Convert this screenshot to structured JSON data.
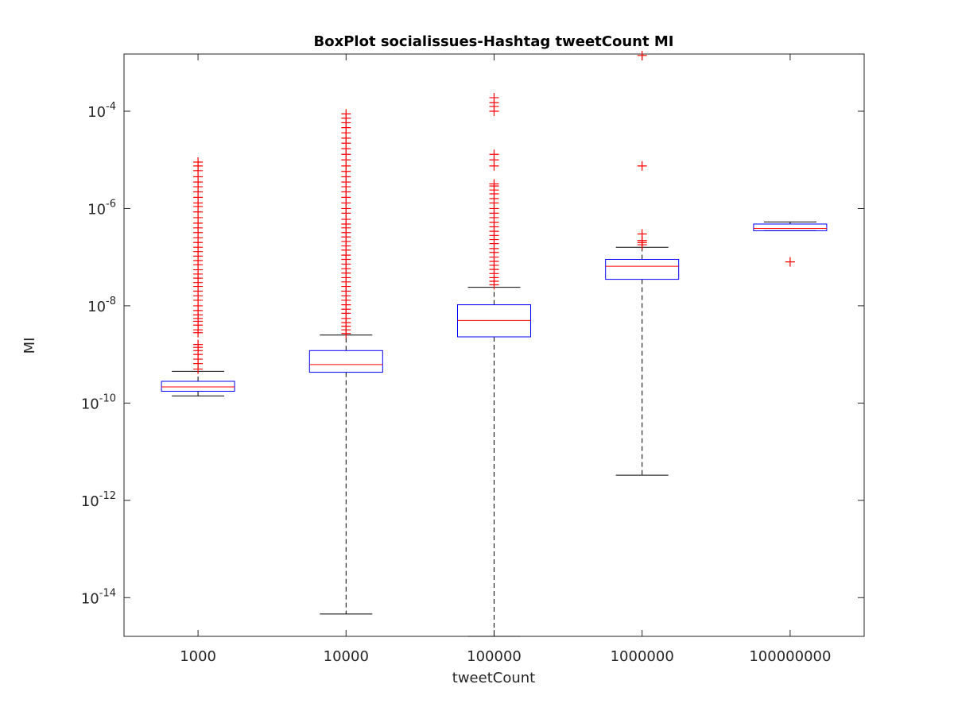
{
  "chart_data": {
    "type": "box",
    "title": "BoxPlot socialissues-Hashtag tweetCount MI",
    "xlabel": "tweetCount",
    "ylabel": "MI",
    "yscale": "log",
    "ylim": [
      1.6e-15,
      0.0015
    ],
    "grid": false,
    "legend": "none",
    "categories": [
      "1000",
      "10000",
      "100000",
      "1000000",
      "100000000"
    ],
    "ytick_values": [
      1e-14,
      1e-12,
      1e-10,
      1e-08,
      1e-06,
      0.0001
    ],
    "ytick_labels": [
      {
        "base": "10",
        "exp": "-14"
      },
      {
        "base": "10",
        "exp": "-12"
      },
      {
        "base": "10",
        "exp": "-10"
      },
      {
        "base": "10",
        "exp": "-8"
      },
      {
        "base": "10",
        "exp": "-6"
      },
      {
        "base": "10",
        "exp": "-4"
      }
    ],
    "boxes": [
      {
        "category": "1000",
        "whisker_low": 1.4e-10,
        "q1": 1.75e-10,
        "median": 2.15e-10,
        "q3": 2.8e-10,
        "whisker_high": 4.5e-10,
        "outliers": [
          5e-10,
          6.5e-10,
          8e-10,
          1e-09,
          1.2e-09,
          1.4e-09,
          1.6e-09,
          2.8e-09,
          3.2e-09,
          4e-09,
          4.8e-09,
          5.5e-09,
          6.5e-09,
          8e-09,
          1e-08,
          1.3e-08,
          1.6e-08,
          2e-08,
          2.5e-08,
          3e-08,
          3.7e-08,
          4.5e-08,
          5.5e-08,
          7e-08,
          8.5e-08,
          1.05e-07,
          1.3e-07,
          1.6e-07,
          2e-07,
          2.5e-07,
          3.2e-07,
          4e-07,
          5e-07,
          6.5e-07,
          8.5e-07,
          1.1e-06,
          1.3e-06,
          1.7e-06,
          2.2e-06,
          2.8e-06,
          3.5e-06,
          4.5e-06,
          6e-06,
          7.5e-06,
          9e-06
        ]
      },
      {
        "category": "10000",
        "whisker_low": 4.6e-15,
        "q1": 4.3e-10,
        "median": 6.2e-10,
        "q3": 1.2e-09,
        "whisker_high": 2.5e-09,
        "outliers": [
          2.7e-09,
          3.2e-09,
          3.8e-09,
          4.5e-09,
          5.5e-09,
          7e-09,
          8.5e-09,
          1.05e-08,
          1.3e-08,
          1.6e-08,
          2e-08,
          2.5e-08,
          3.1e-08,
          3.8e-08,
          4.7e-08,
          5.8e-08,
          7.2e-08,
          9e-08,
          1.1e-07,
          1.4e-07,
          1.7e-07,
          2.1e-07,
          2.6e-07,
          3.2e-07,
          4e-07,
          4.8e-07,
          6e-07,
          8e-07,
          1e-06,
          1.3e-06,
          1.7e-06,
          2.2e-06,
          2.8e-06,
          3.5e-06,
          4.5e-06,
          5.8e-06,
          7.5e-06,
          1e-05,
          1.3e-05,
          1.7e-05,
          2.2e-05,
          2.8e-05,
          3.6e-05,
          4.6e-05,
          5.8e-05,
          7.2e-05,
          8.8e-05
        ]
      },
      {
        "category": "100000",
        "whisker_low": 1.6e-15,
        "q1": 2.3e-09,
        "median": 5e-09,
        "q3": 1.05e-08,
        "whisker_high": 2.4e-08,
        "outliers": [
          2.7e-08,
          3.2e-08,
          3.8e-08,
          4.6e-08,
          5.6e-08,
          6.8e-08,
          8.2e-08,
          1e-07,
          1.25e-07,
          1.5e-07,
          1.9e-07,
          2.3e-07,
          2.8e-07,
          3.4e-07,
          4.2e-07,
          5.2e-07,
          6.5e-07,
          8e-07,
          1e-06,
          1.3e-06,
          1.6e-06,
          2e-06,
          2.4e-06,
          2.9e-06,
          3.2e-06,
          7.5e-06,
          1e-05,
          1.3e-05,
          0.0001,
          0.000125,
          0.00015,
          0.00019
        ]
      },
      {
        "category": "1000000",
        "whisker_low": 3.3e-12,
        "q1": 3.5e-08,
        "median": 6.5e-08,
        "q3": 9e-08,
        "whisker_high": 1.6e-07,
        "outliers": [
          1.8e-07,
          2e-07,
          2.2e-07,
          3e-07,
          7.5e-06,
          0.0014
        ]
      },
      {
        "category": "100000000",
        "whisker_low": 3.5e-07,
        "q1": 3.5e-07,
        "median": 3.9e-07,
        "q3": 4.8e-07,
        "whisker_high": 5.3e-07,
        "outliers": [
          8e-08
        ]
      }
    ],
    "colors": {
      "box": "#0000ff",
      "median": "#ff0000",
      "outlier": "#ff0000",
      "whisker": "#000000",
      "axis": "#262626"
    }
  }
}
